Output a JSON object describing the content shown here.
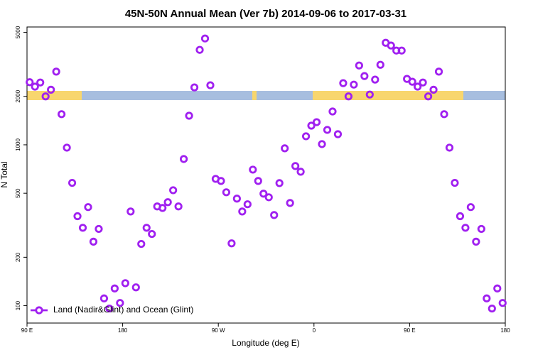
{
  "chart_data": {
    "type": "scatter",
    "title": "45N-50N Annual Mean (Ver 7b)   2014-09-06 to 2017-03-31",
    "x_label": "Longitude (deg E)",
    "y_label": "N Total",
    "log_y": true,
    "legend": "lower left",
    "xlim": [
      90,
      540
    ],
    "xticks": [
      {
        "value": 90,
        "label": "90 E"
      },
      {
        "value": 180,
        "label": "180"
      },
      {
        "value": 270,
        "label": "90 W"
      },
      {
        "value": 360,
        "label": "0"
      },
      {
        "value": 450,
        "label": "90 E"
      },
      {
        "value": 540,
        "label": "180"
      }
    ],
    "ylim": [
      78,
      5400
    ],
    "yticks": [
      100,
      200,
      500,
      1000,
      2000,
      5000
    ],
    "series": [
      {
        "name": "Land (Nadir&Glint) and Ocean (Glint)",
        "color": "#a020f0",
        "x": [
          92.5,
          97.5,
          102.5,
          107.5,
          112.5,
          117.5,
          122.5,
          127.5,
          132.5,
          137.5,
          142.5,
          147.5,
          152.5,
          157.5,
          162.5,
          167.5,
          172.5,
          177.5,
          182.5,
          187.5,
          192.5,
          197.5,
          202.5,
          207.5,
          212.5,
          217.5,
          222.5,
          227.5,
          232.5,
          237.5,
          242.5,
          247.5,
          252.5,
          257.5,
          262.5,
          267.5,
          272.5,
          277.5,
          282.5,
          287.5,
          292.5,
          297.5,
          302.5,
          307.5,
          312.5,
          317.5,
          322.5,
          327.5,
          332.5,
          337.5,
          342.5,
          347.5,
          352.5,
          357.5,
          362.5,
          367.5,
          372.5,
          377.5,
          382.5,
          387.5,
          392.5,
          397.5,
          402.5,
          407.5,
          412.5,
          417.5,
          422.5,
          427.5,
          432.5,
          437.5,
          442.5,
          447.5,
          452.5,
          457.5,
          462.5,
          467.5,
          472.5,
          477.5,
          482.5,
          487.5,
          492.5,
          497.5,
          502.5,
          507.5,
          512.5,
          517.5,
          522.5,
          527.5,
          532.5,
          537.5
        ],
        "values": [
          2450,
          2300,
          2440,
          2000,
          2200,
          2850,
          1550,
          960,
          580,
          360,
          305,
          410,
          250,
          300,
          111,
          96,
          128,
          104,
          138,
          385,
          130,
          242,
          305,
          279,
          414,
          405,
          440,
          522,
          414,
          816,
          1516,
          2274,
          3892,
          4580,
          2345,
          614,
          596,
          507,
          244,
          463,
          385,
          427,
          701,
          596,
          497,
          472,
          366,
          578,
          951,
          435,
          738,
          680,
          1130,
          1315,
          1383,
          1010,
          1238,
          1611,
          1164,
          2417,
          2000,
          2367,
          3112,
          2675,
          2053,
          2543,
          3144,
          4307,
          4140,
          3853,
          3853,
          2568,
          2466,
          2300,
          2440,
          2000,
          2200,
          2850,
          1550,
          960,
          580,
          360,
          305,
          410,
          250,
          300,
          111,
          96,
          128,
          104
        ]
      }
    ]
  }
}
